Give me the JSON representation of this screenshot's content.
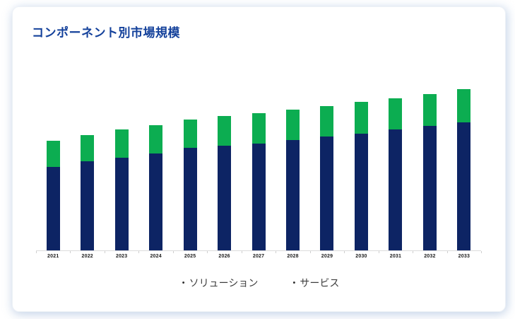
{
  "card": {
    "background": "#ffffff"
  },
  "chart": {
    "title": "コンポーネント別市場規模",
    "title_color": "#14419B"
  },
  "legend": {
    "items": [
      {
        "bullet": "・",
        "label": "ソリューション"
      },
      {
        "bullet": "・",
        "label": "サービス"
      }
    ]
  },
  "chart_data": {
    "type": "bar",
    "stacked": true,
    "title": "コンポーネント別市場規模",
    "categories": [
      "2021",
      "2022",
      "2023",
      "2024",
      "2025",
      "2026",
      "2027",
      "2028",
      "2029",
      "2030",
      "2031",
      "2032",
      "2033"
    ],
    "series": [
      {
        "name": "ソリューション",
        "color": "#0D2464",
        "values": [
          118,
          126,
          131,
          137,
          145,
          148,
          151,
          156,
          161,
          165,
          171,
          176,
          181
        ]
      },
      {
        "name": "サービス",
        "color": "#0CAD51",
        "values": [
          37,
          37,
          40,
          40,
          40,
          42,
          43,
          43,
          43,
          45,
          44,
          45,
          47
        ]
      }
    ],
    "xlabel": "",
    "ylabel": "",
    "ylim": [
      0,
      250
    ],
    "y_axis_visible": false,
    "grid": false,
    "axis_color": "#dcdcdc",
    "legend_position": "bottom",
    "note_units": "relative units estimated from bar heights; no value axis shown"
  }
}
